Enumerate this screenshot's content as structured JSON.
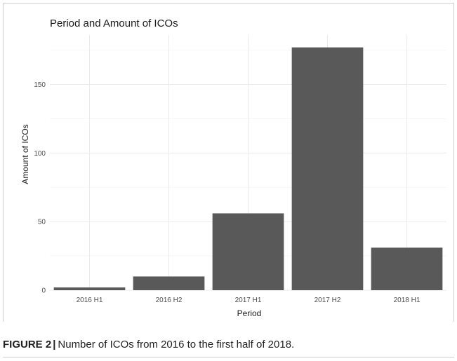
{
  "figure": {
    "caption_label": "FIGURE 2",
    "caption_separator": "|",
    "caption_text": "Number of ICOs from 2016 to the first half of 2018."
  },
  "chart_data": {
    "type": "bar",
    "title": "Period and Amount of ICOs",
    "xlabel": "Period",
    "ylabel": "Amount of ICOs",
    "categories": [
      "2016 H1",
      "2016 H2",
      "2017 H1",
      "2017 H2",
      "2018 H1"
    ],
    "values": [
      2,
      10,
      56,
      177,
      31
    ],
    "ylim": [
      0,
      186
    ],
    "yticks": [
      0,
      50,
      100,
      150
    ],
    "grid": true,
    "legend": "none",
    "bar_color": "#595959",
    "grid_color": "#ebebeb"
  }
}
